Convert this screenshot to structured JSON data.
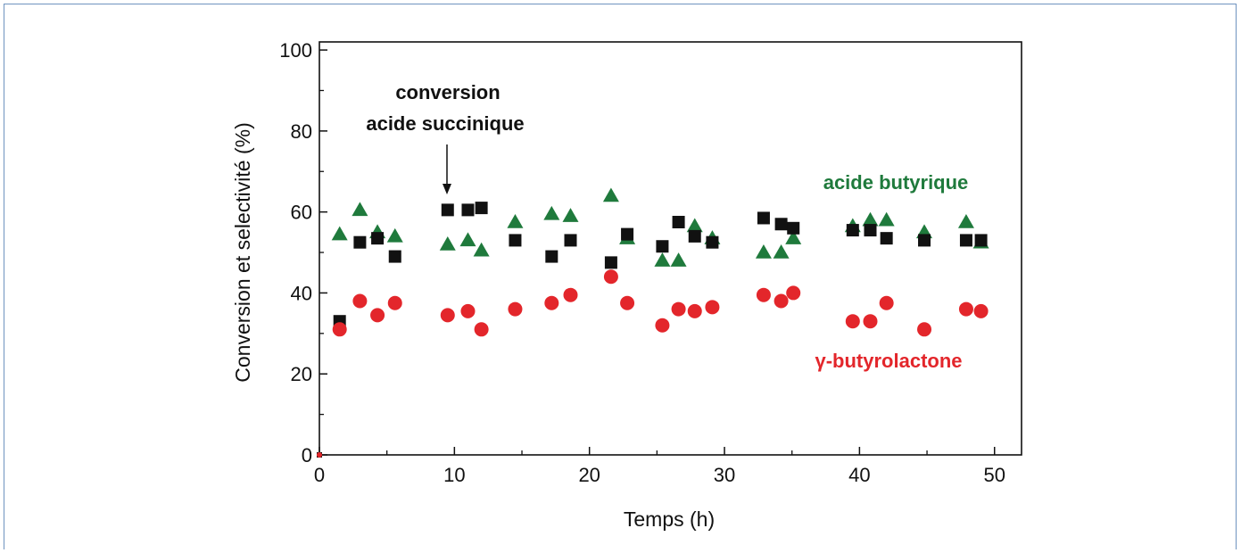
{
  "chart_data": {
    "type": "scatter",
    "xlabel": "Temps (h)",
    "ylabel": "Conversion et selectivité (%)",
    "xlim": [
      0,
      52
    ],
    "ylim": [
      0,
      102
    ],
    "xticks": [
      0,
      10,
      20,
      30,
      40,
      50
    ],
    "yticks": [
      0,
      20,
      40,
      60,
      80,
      100
    ],
    "colors": {
      "conversion": "#111111",
      "butyric": "#1f7a3c",
      "gbl": "#e3262b"
    },
    "annotations": {
      "conversion_line1": "conversion",
      "conversion_line2": "acide succinique",
      "butyric": "acide butyrique",
      "gbl": "γ-butyrolactone"
    },
    "series": [
      {
        "key": "conversion",
        "marker": "square",
        "x": [
          0,
          1.5,
          3.0,
          4.3,
          5.6,
          9.5,
          11.0,
          12.0,
          14.5,
          17.2,
          18.6,
          21.6,
          22.8,
          25.4,
          26.6,
          27.8,
          29.1,
          32.9,
          34.2,
          35.1,
          39.5,
          40.8,
          42.0,
          44.8,
          47.9,
          49.0
        ],
        "y": [
          0,
          33,
          52.5,
          53.5,
          49,
          60.5,
          60.5,
          61,
          53,
          49,
          53,
          47.5,
          54.5,
          51.5,
          57.5,
          54,
          52.5,
          58.5,
          57,
          56,
          55.5,
          55.5,
          53.5,
          53,
          53,
          53
        ]
      },
      {
        "key": "butyric",
        "marker": "triangle",
        "x": [
          0,
          1.5,
          3.0,
          4.3,
          5.6,
          9.5,
          11.0,
          12.0,
          14.5,
          17.2,
          18.6,
          21.6,
          22.8,
          25.4,
          26.6,
          27.8,
          29.1,
          32.9,
          34.2,
          35.1,
          39.5,
          40.8,
          42.0,
          44.8,
          47.9,
          49.0
        ],
        "y": [
          0,
          54.5,
          60.5,
          55,
          54,
          52,
          53,
          50.5,
          57.5,
          59.5,
          59,
          64,
          53.5,
          48,
          48,
          56.5,
          53.5,
          50,
          50,
          53.5,
          56.5,
          58,
          58,
          55,
          57.5,
          52.5
        ]
      },
      {
        "key": "gbl",
        "marker": "circle",
        "x": [
          0,
          1.5,
          3.0,
          4.3,
          5.6,
          9.5,
          11.0,
          12.0,
          14.5,
          17.2,
          18.6,
          21.6,
          22.8,
          25.4,
          26.6,
          27.8,
          29.1,
          32.9,
          34.2,
          35.1,
          39.5,
          40.8,
          42.0,
          44.8,
          47.9,
          49.0
        ],
        "y": [
          0,
          31,
          38,
          34.5,
          37.5,
          34.5,
          35.5,
          31,
          36,
          37.5,
          39.5,
          44,
          37.5,
          32,
          36,
          35.5,
          36.5,
          39.5,
          38,
          40,
          33,
          33,
          37.5,
          31,
          36,
          35.5
        ]
      }
    ]
  }
}
